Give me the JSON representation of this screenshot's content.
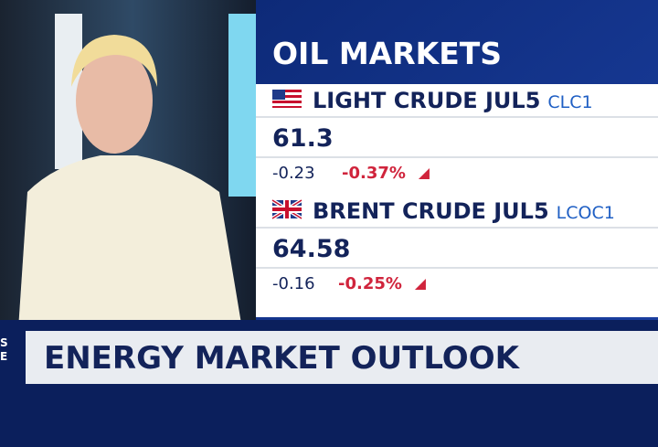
{
  "header": {
    "title": "OIL MARKETS"
  },
  "quotes": [
    {
      "name": "LIGHT CRUDE JUL5",
      "symbol": "CLC1",
      "price": "61.3",
      "change": "-0.23",
      "percent": "-0.37%"
    },
    {
      "name": "BRENT CRUDE JUL5",
      "symbol": "LCOC1",
      "price": "64.58",
      "change": "-0.16",
      "percent": "-0.25%"
    }
  ],
  "lower_third": {
    "headline": "ENERGY MARKET OUTLOOK",
    "side_letters": [
      "S",
      "E"
    ]
  }
}
